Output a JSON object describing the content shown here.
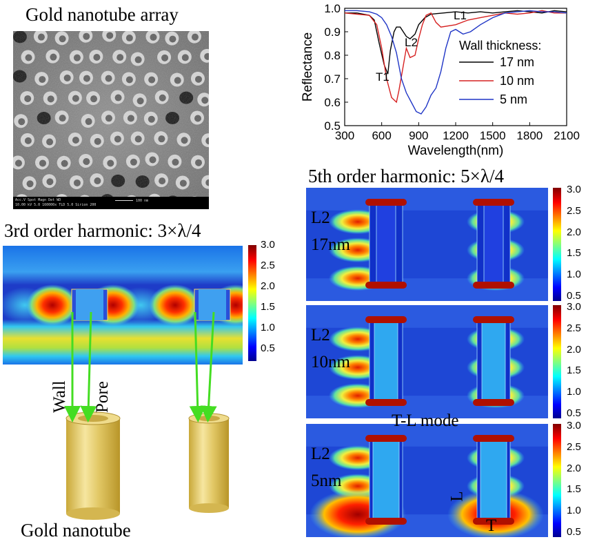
{
  "sem": {
    "title": "Gold nanotube array",
    "meta_row1": "Acc.V   Spot  Magn     Det  WD",
    "meta_row2": "10.00 kV  5.0  160000x  TLD  5.0   Sirion 200",
    "scale_label": "100 nm"
  },
  "harmonic3": {
    "title": "3rd order harmonic: 3×λ/4",
    "colorbar_ticks": [
      "3.0",
      "2.5",
      "2.0",
      "1.5",
      "1.0",
      "0.5"
    ]
  },
  "nanotube": {
    "wall_label": "Wall",
    "pore_label": "Pore",
    "caption": "Gold nanotube"
  },
  "harmonic5": {
    "title": "5th order harmonic: 5×λ/4",
    "colorbar_ticks": [
      "3.0",
      "2.5",
      "2.0",
      "1.5",
      "1.0",
      "0.5"
    ],
    "panels": [
      {
        "mode": "L2",
        "thickness": "17nm"
      },
      {
        "mode": "L2",
        "thickness": "10nm"
      },
      {
        "mode": "L2",
        "thickness": "5nm"
      }
    ],
    "tl_mode_label": "T-L mode",
    "l_label": "L",
    "t_label": "T"
  },
  "colors": {
    "black_series": "#000000",
    "red_series": "#d62020",
    "blue_series": "#1f35c6",
    "arrow": "#44dd22",
    "gold": "#e2c866"
  },
  "chart_data": {
    "type": "line",
    "xlabel": "Wavelength(nm)",
    "ylabel": "Reflectance",
    "xlim": [
      300,
      2100
    ],
    "ylim": [
      0.5,
      1.0
    ],
    "x_ticks": [
      "300",
      "600",
      "900",
      "1200",
      "1500",
      "1800",
      "2100"
    ],
    "y_ticks": [
      "0.5",
      "0.6",
      "0.7",
      "0.8",
      "0.9",
      "1.0"
    ],
    "legend_title": "Wall thickness:",
    "annotations": [
      "L1",
      "L2",
      "T1"
    ],
    "series": [
      {
        "name": "17 nm",
        "color": "#000000",
        "x": [
          300,
          400,
          500,
          540,
          580,
          620,
          650,
          670,
          700,
          720,
          750,
          800,
          830,
          870,
          900,
          950,
          1000,
          1100,
          1200,
          1300,
          1400,
          1500,
          1600,
          1700,
          1800,
          1900,
          2000,
          2100
        ],
        "y": [
          0.98,
          0.98,
          0.97,
          0.95,
          0.85,
          0.76,
          0.72,
          0.82,
          0.9,
          0.92,
          0.92,
          0.88,
          0.87,
          0.89,
          0.93,
          0.96,
          0.975,
          0.98,
          0.985,
          0.98,
          0.985,
          0.98,
          0.985,
          0.99,
          0.985,
          0.98,
          0.99,
          0.985
        ]
      },
      {
        "name": "10 nm",
        "color": "#d62020",
        "x": [
          300,
          400,
          500,
          560,
          600,
          640,
          680,
          720,
          740,
          770,
          800,
          830,
          870,
          900,
          930,
          960,
          1000,
          1040,
          1080,
          1200,
          1300,
          1400,
          1500,
          1600,
          1700,
          1800,
          1900,
          2000,
          2100
        ],
        "y": [
          0.98,
          0.975,
          0.97,
          0.93,
          0.83,
          0.7,
          0.62,
          0.6,
          0.65,
          0.74,
          0.83,
          0.79,
          0.8,
          0.87,
          0.93,
          0.97,
          0.98,
          0.94,
          0.92,
          0.93,
          0.95,
          0.96,
          0.97,
          0.98,
          0.975,
          0.98,
          0.99,
          0.98,
          0.98
        ]
      },
      {
        "name": "5 nm",
        "color": "#1f35c6",
        "x": [
          300,
          400,
          500,
          560,
          600,
          640,
          680,
          720,
          760,
          800,
          840,
          880,
          920,
          960,
          1000,
          1040,
          1080,
          1120,
          1160,
          1200,
          1260,
          1320,
          1400,
          1500,
          1600,
          1700,
          1800,
          1900,
          2000,
          2100
        ],
        "y": [
          0.99,
          0.99,
          0.985,
          0.975,
          0.96,
          0.93,
          0.88,
          0.81,
          0.7,
          0.64,
          0.6,
          0.56,
          0.55,
          0.58,
          0.63,
          0.66,
          0.73,
          0.83,
          0.9,
          0.91,
          0.89,
          0.9,
          0.93,
          0.96,
          0.98,
          0.985,
          0.99,
          0.985,
          0.985,
          0.98
        ]
      }
    ]
  }
}
